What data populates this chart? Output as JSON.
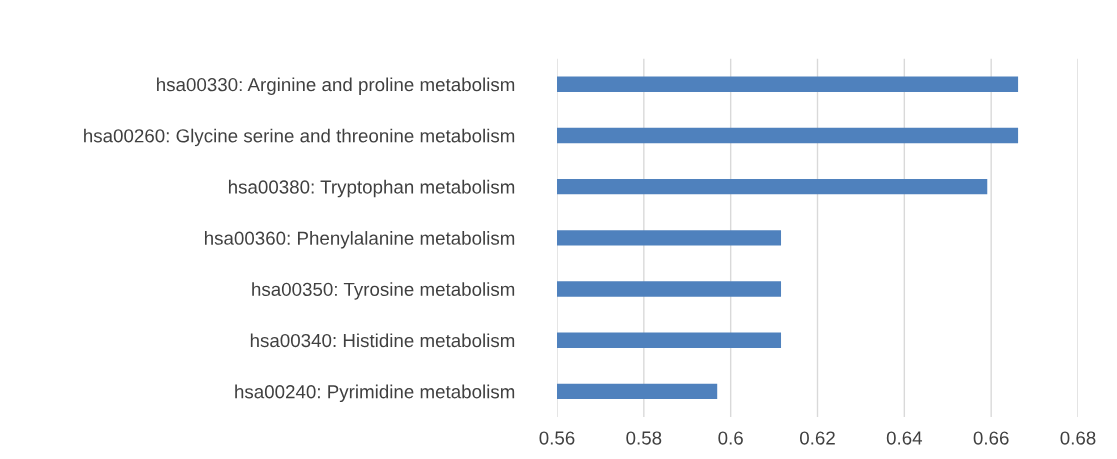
{
  "chart_data": {
    "type": "bar",
    "orientation": "horizontal",
    "categories": [
      "hsa00330: Arginine and proline metabolism",
      "hsa00260: Glycine serine and threonine metabolism",
      "hsa00380: Tryptophan metabolism",
      "hsa00360: Phenylalanine metabolism",
      "hsa00350: Tyrosine metabolism",
      "hsa00340: Histidine metabolism",
      "hsa00240: Pyrimidine metabolism"
    ],
    "values": [
      0.6662,
      0.6662,
      0.6591,
      0.6116,
      0.6116,
      0.6116,
      0.5969
    ],
    "color": "#4f81bd",
    "xlim": [
      0.56,
      0.68
    ],
    "xticks": [
      0.56,
      0.58,
      {
        "value": 0.6,
        "label": "0.6"
      },
      0.62,
      0.64,
      0.66,
      0.68
    ],
    "grid": "x"
  }
}
